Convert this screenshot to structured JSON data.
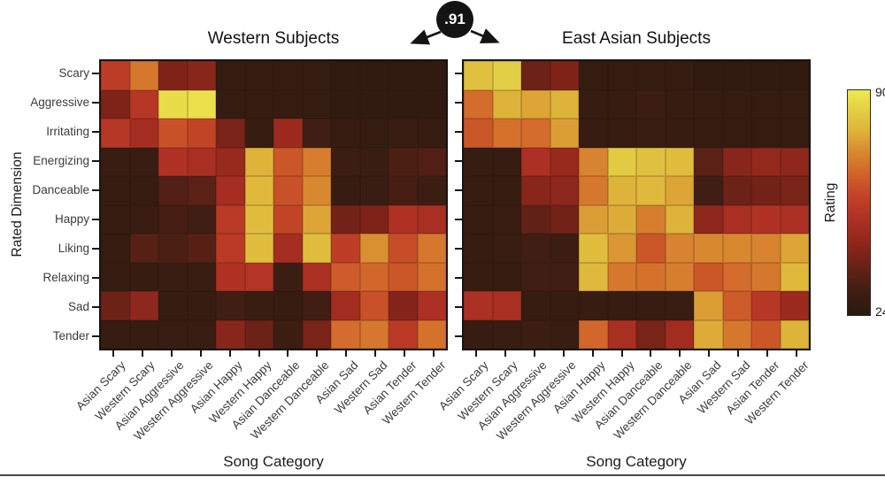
{
  "header": {
    "correlation_badge": ".91"
  },
  "chart_data": {
    "type": "heatmap",
    "x_axis_label": "Song Category",
    "y_axis_label": "Rated Dimension",
    "row_labels": [
      "Scary",
      "Aggressive",
      "Irritating",
      "Energizing",
      "Danceable",
      "Happy",
      "Liking",
      "Relaxing",
      "Sad",
      "Tender"
    ],
    "col_labels": [
      "Asian Scary",
      "Western Scary",
      "Asian Aggressive",
      "Western Aggressive",
      "Asian Happy",
      "Western Happy",
      "Asian Danceable",
      "Western Danceable",
      "Asian Sad",
      "Western Sad",
      "Asian Tender",
      "Western Tender"
    ],
    "panels": [
      {
        "title": "Western Subjects",
        "values": [
          [
            57,
            69,
            42,
            44,
            27,
            27,
            27,
            27,
            26,
            26,
            26,
            26
          ],
          [
            42,
            55,
            87,
            88,
            27,
            27,
            27,
            27,
            26,
            26,
            26,
            26
          ],
          [
            55,
            50,
            62,
            59,
            41,
            28,
            48,
            31,
            28,
            27,
            29,
            27
          ],
          [
            29,
            29,
            53,
            51,
            47,
            78,
            63,
            70,
            30,
            29,
            33,
            34
          ],
          [
            28,
            28,
            34,
            36,
            50,
            79,
            62,
            72,
            28,
            29,
            32,
            30
          ],
          [
            28,
            29,
            32,
            31,
            56,
            80,
            59,
            76,
            40,
            42,
            53,
            51
          ],
          [
            28,
            35,
            33,
            35,
            56,
            80,
            50,
            80,
            57,
            73,
            61,
            69
          ],
          [
            27,
            28,
            29,
            29,
            53,
            54,
            30,
            52,
            64,
            66,
            63,
            68
          ],
          [
            39,
            45,
            28,
            28,
            31,
            29,
            28,
            31,
            49,
            62,
            43,
            52
          ],
          [
            28,
            28,
            29,
            29,
            44,
            39,
            30,
            41,
            67,
            69,
            56,
            68
          ]
        ]
      },
      {
        "title": "East Asian Subjects",
        "values": [
          [
            81,
            84,
            39,
            42,
            27,
            27,
            27,
            27,
            26,
            26,
            26,
            26
          ],
          [
            67,
            78,
            76,
            78,
            28,
            28,
            30,
            28,
            27,
            27,
            27,
            27
          ],
          [
            63,
            68,
            67,
            75,
            28,
            28,
            29,
            28,
            27,
            27,
            27,
            27
          ],
          [
            28,
            28,
            52,
            47,
            71,
            83,
            81,
            80,
            36,
            44,
            46,
            45
          ],
          [
            28,
            28,
            44,
            45,
            69,
            78,
            79,
            76,
            31,
            39,
            40,
            41
          ],
          [
            28,
            29,
            37,
            40,
            75,
            77,
            70,
            78,
            45,
            51,
            53,
            52
          ],
          [
            28,
            29,
            31,
            30,
            80,
            74,
            63,
            71,
            72,
            72,
            71,
            76
          ],
          [
            28,
            28,
            31,
            31,
            79,
            69,
            68,
            70,
            63,
            67,
            69,
            79
          ],
          [
            52,
            51,
            28,
            28,
            28,
            28,
            28,
            29,
            75,
            64,
            55,
            48
          ],
          [
            28,
            29,
            30,
            29,
            66,
            51,
            41,
            49,
            77,
            69,
            63,
            78
          ]
        ]
      }
    ],
    "colorbar": {
      "label": "Rating",
      "min": 24,
      "max": 90,
      "gradient_stops": [
        [
          0.0,
          "#2b1a10"
        ],
        [
          0.09,
          "#3c1d12"
        ],
        [
          0.18,
          "#5a2016"
        ],
        [
          0.27,
          "#7e2319"
        ],
        [
          0.36,
          "#9c2a1e"
        ],
        [
          0.45,
          "#b33325"
        ],
        [
          0.55,
          "#c64828"
        ],
        [
          0.64,
          "#d2682b"
        ],
        [
          0.73,
          "#d88a30"
        ],
        [
          0.82,
          "#deb43a"
        ],
        [
          0.91,
          "#e3cf45"
        ],
        [
          1.0,
          "#efe94e"
        ]
      ]
    }
  }
}
